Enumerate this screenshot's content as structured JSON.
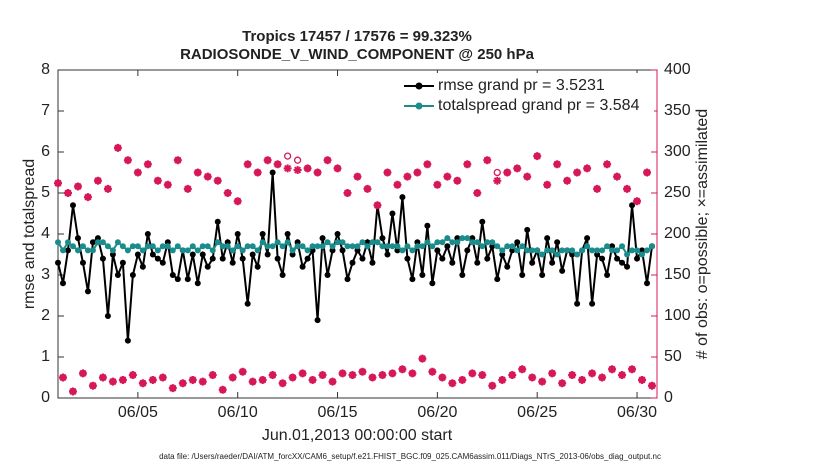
{
  "chart_data": {
    "type": "line",
    "title": "Tropics 17457 / 17576 = 99.323%",
    "subtitle": "RADIOSONDE_V_WIND_COMPONENT @ 250 hPa",
    "ylabel": "rmse and totalspread",
    "y2label": "# of obs: o=possible; ×=assimilated",
    "xlabel": "Jun.01,2013 00:00:00 start",
    "footnote": "data file: /Users/raeder/DAI/ATM_forcXX/CAM6_setup/f.e21.FHIST_BGC.f09_025.CAM6assim.011/Diags_NTrS_2013-06/obs_diag_output.nc",
    "legend": "upper right",
    "xlim": [
      1,
      31
    ],
    "xticks": [
      {
        "value": 5,
        "label": "06/05"
      },
      {
        "value": 10,
        "label": "06/10"
      },
      {
        "value": 15,
        "label": "06/15"
      },
      {
        "value": 20,
        "label": "06/20"
      },
      {
        "value": 25,
        "label": "06/25"
      },
      {
        "value": 30,
        "label": "06/30"
      }
    ],
    "ylim": [
      0,
      8
    ],
    "yticks": [
      0,
      1,
      2,
      3,
      4,
      5,
      6,
      7,
      8
    ],
    "y2lim": [
      0,
      400
    ],
    "y2ticks": [
      0,
      50,
      100,
      150,
      200,
      250,
      300,
      350,
      400
    ],
    "y2color": "#d6185b",
    "x": [
      1,
      1.25,
      1.5,
      1.75,
      2,
      2.25,
      2.5,
      2.75,
      3,
      3.25,
      3.5,
      3.75,
      4,
      4.25,
      4.5,
      4.75,
      5,
      5.25,
      5.5,
      5.75,
      6,
      6.25,
      6.5,
      6.75,
      7,
      7.25,
      7.5,
      7.75,
      8,
      8.25,
      8.5,
      8.75,
      9,
      9.25,
      9.5,
      9.75,
      10,
      10.25,
      10.5,
      10.75,
      11,
      11.25,
      11.5,
      11.75,
      12,
      12.25,
      12.5,
      12.75,
      13,
      13.25,
      13.5,
      13.75,
      14,
      14.25,
      14.5,
      14.75,
      15,
      15.25,
      15.5,
      15.75,
      16,
      16.25,
      16.5,
      16.75,
      17,
      17.25,
      17.5,
      17.75,
      18,
      18.25,
      18.5,
      18.75,
      19,
      19.25,
      19.5,
      19.75,
      20,
      20.25,
      20.5,
      20.75,
      21,
      21.25,
      21.5,
      21.75,
      22,
      22.25,
      22.5,
      22.75,
      23,
      23.25,
      23.5,
      23.75,
      24,
      24.25,
      24.5,
      24.75,
      25,
      25.25,
      25.5,
      25.75,
      26,
      26.25,
      26.5,
      26.75,
      27,
      27.25,
      27.5,
      27.75,
      28,
      28.25,
      28.5,
      28.75,
      29,
      29.25,
      29.5,
      29.75,
      30,
      30.25,
      30.5,
      30.75
    ],
    "series": [
      {
        "name": "rmse grand pr = 3.5231",
        "color": "#000000",
        "marker": "dot",
        "values": [
          3.3,
          2.8,
          3.6,
          4.7,
          3.9,
          3.3,
          2.6,
          3.8,
          3.9,
          3.4,
          2.0,
          3.5,
          3.0,
          3.3,
          1.4,
          3.0,
          3.5,
          3.2,
          4.0,
          3.5,
          3.4,
          3.3,
          3.8,
          3.0,
          2.9,
          3.6,
          2.9,
          3.5,
          2.8,
          3.5,
          3.2,
          3.4,
          4.3,
          3.4,
          3.8,
          3.3,
          4.0,
          3.4,
          2.3,
          3.5,
          3.2,
          4.0,
          3.5,
          5.5,
          3.4,
          3.0,
          4.0,
          3.5,
          3.8,
          3.2,
          3.4,
          3.6,
          1.9,
          3.9,
          3.0,
          3.6,
          4.0,
          3.6,
          2.9,
          3.3,
          3.6,
          3.4,
          3.8,
          3.3,
          4.7,
          3.9,
          3.5,
          4.5,
          3.6,
          4.9,
          3.4,
          2.9,
          3.8,
          3.0,
          4.2,
          2.8,
          3.6,
          3.4,
          3.7,
          3.3,
          3.9,
          3.0,
          3.6,
          3.9,
          3.3,
          4.3,
          3.4,
          3.7,
          2.9,
          3.5,
          3.2,
          3.6,
          3.8,
          3.0,
          4.1,
          3.3,
          3.6,
          3.0,
          3.9,
          3.3,
          3.8,
          3.1,
          3.6,
          3.5,
          2.3,
          3.6,
          3.9,
          2.3,
          3.5,
          3.4,
          3.0,
          3.7,
          3.4,
          3.3,
          3.2,
          4.7,
          3.4,
          3.6,
          2.8,
          3.7
        ]
      },
      {
        "name": "totalspread grand pr = 3.584",
        "color": "#1a8c8c",
        "marker": "dot",
        "values": [
          3.8,
          3.6,
          3.8,
          3.7,
          3.6,
          3.7,
          3.6,
          3.6,
          3.8,
          3.8,
          3.7,
          3.6,
          3.8,
          3.7,
          3.6,
          3.7,
          3.7,
          3.6,
          3.7,
          3.7,
          3.6,
          3.7,
          3.7,
          3.6,
          3.7,
          3.6,
          3.6,
          3.7,
          3.6,
          3.7,
          3.7,
          3.6,
          3.8,
          3.7,
          3.7,
          3.6,
          3.7,
          3.6,
          3.7,
          3.7,
          3.6,
          3.8,
          3.7,
          3.7,
          3.8,
          3.7,
          3.8,
          3.6,
          3.7,
          3.7,
          3.6,
          3.7,
          3.7,
          3.7,
          3.8,
          3.7,
          3.8,
          3.8,
          3.7,
          3.7,
          3.7,
          3.8,
          3.7,
          3.8,
          3.8,
          3.7,
          3.7,
          3.7,
          3.7,
          3.6,
          3.7,
          3.6,
          3.7,
          3.7,
          3.8,
          3.7,
          3.8,
          3.8,
          3.9,
          3.8,
          3.8,
          3.9,
          3.9,
          3.8,
          3.8,
          3.7,
          3.8,
          3.8,
          3.7,
          3.6,
          3.7,
          3.7,
          3.6,
          3.7,
          3.6,
          3.6,
          3.6,
          3.5,
          3.6,
          3.6,
          3.5,
          3.6,
          3.6,
          3.6,
          3.5,
          3.6,
          3.7,
          3.6,
          3.6,
          3.6,
          3.7,
          3.6,
          3.6,
          3.7,
          3.5,
          3.6,
          3.6,
          3.5,
          3.6,
          3.7
        ]
      },
      {
        "color": "#d6185b",
        "axis": "y2",
        "marker": "circle",
        "values": [
          262,
          25,
          250,
          8,
          258,
          30,
          245,
          15,
          265,
          25,
          255,
          20,
          305,
          22,
          290,
          28,
          275,
          18,
          285,
          22,
          265,
          25,
          260,
          12,
          290,
          18,
          255,
          22,
          275,
          20,
          270,
          28,
          265,
          10,
          250,
          25,
          240,
          32,
          285,
          20,
          275,
          22,
          290,
          28,
          285,
          18,
          295,
          25,
          290,
          30,
          280,
          22,
          275,
          28,
          290,
          20,
          280,
          30,
          250,
          28,
          270,
          32,
          255,
          25,
          235,
          28,
          275,
          30,
          260,
          35,
          270,
          30,
          275,
          48,
          285,
          32,
          260,
          25,
          270,
          18,
          265,
          22,
          285,
          30,
          250,
          28,
          290,
          15,
          275,
          22,
          275,
          28,
          280,
          35,
          270,
          25,
          295,
          20,
          260,
          30,
          285,
          18,
          265,
          28,
          275,
          22,
          280,
          30,
          255,
          25,
          285,
          35,
          270,
          28,
          255,
          35,
          240,
          22,
          275,
          15
        ]
      },
      {
        "color": "#d6185b",
        "axis": "y2",
        "marker": "star",
        "values": [
          262,
          25,
          250,
          8,
          258,
          30,
          245,
          15,
          265,
          25,
          255,
          20,
          305,
          22,
          290,
          28,
          275,
          18,
          285,
          22,
          265,
          25,
          260,
          12,
          290,
          18,
          255,
          22,
          275,
          20,
          270,
          28,
          265,
          10,
          250,
          25,
          240,
          32,
          285,
          20,
          275,
          22,
          290,
          28,
          285,
          18,
          280,
          25,
          278,
          30,
          280,
          22,
          275,
          28,
          290,
          20,
          280,
          30,
          250,
          28,
          270,
          32,
          255,
          25,
          235,
          28,
          275,
          30,
          260,
          35,
          270,
          30,
          275,
          48,
          285,
          32,
          260,
          25,
          270,
          18,
          265,
          22,
          285,
          30,
          250,
          28,
          290,
          15,
          265,
          22,
          275,
          28,
          280,
          35,
          270,
          25,
          295,
          20,
          260,
          30,
          285,
          18,
          265,
          28,
          275,
          22,
          280,
          30,
          255,
          25,
          285,
          35,
          270,
          28,
          255,
          35,
          240,
          22,
          275,
          15
        ]
      }
    ]
  }
}
